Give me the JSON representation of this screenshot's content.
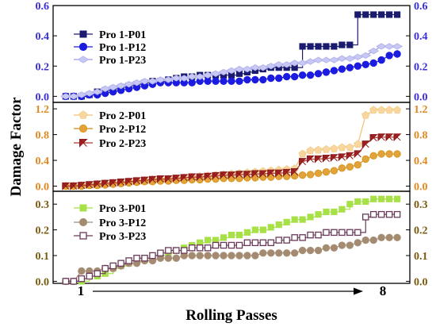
{
  "chart_data": [
    {
      "type": "line",
      "ylim": [
        -0.04,
        0.6
      ],
      "yticks": [
        "0.0",
        "0.2",
        "0.4",
        "0.6"
      ],
      "tick_color": "#3a2fd6",
      "legend_position": "top-left",
      "series": [
        {
          "name": "Pro 1-P01",
          "marker": "square",
          "color": "#1a1a6e",
          "fill": "#1a1a6e",
          "line": "#1a1a6e",
          "step": true,
          "values": [
            0.0,
            0.0,
            0.0,
            0.01,
            0.03,
            0.04,
            0.05,
            0.06,
            0.07,
            0.08,
            0.09,
            0.1,
            0.1,
            0.11,
            0.12,
            0.13,
            0.13,
            0.14,
            0.14,
            0.14,
            0.14,
            0.14,
            0.15,
            0.16,
            0.17,
            0.18,
            0.19,
            0.19,
            0.19,
            0.19,
            0.33,
            0.33,
            0.33,
            0.33,
            0.33,
            0.34,
            0.34,
            0.54,
            0.54,
            0.54,
            0.54,
            0.54,
            0.54
          ]
        },
        {
          "name": "Pro 1-P12",
          "marker": "circle",
          "color": "#1c1ce0",
          "fill": "#1c1ce0",
          "line": "#1c1ce0",
          "step": false,
          "values": [
            0.0,
            0.0,
            0.0,
            0.01,
            0.01,
            0.02,
            0.03,
            0.04,
            0.05,
            0.06,
            0.07,
            0.08,
            0.09,
            0.09,
            0.09,
            0.09,
            0.09,
            0.1,
            0.1,
            0.1,
            0.1,
            0.1,
            0.1,
            0.11,
            0.11,
            0.11,
            0.12,
            0.12,
            0.13,
            0.13,
            0.14,
            0.14,
            0.15,
            0.16,
            0.17,
            0.18,
            0.19,
            0.2,
            0.21,
            0.22,
            0.24,
            0.27,
            0.28
          ]
        },
        {
          "name": "Pro 1-P23",
          "marker": "diamond",
          "color": "#b4b4ee",
          "fill": "#c8c8f4",
          "line": "#9a9ae4",
          "step": false,
          "values": [
            0.0,
            0.0,
            0.01,
            0.02,
            0.03,
            0.05,
            0.06,
            0.07,
            0.08,
            0.09,
            0.1,
            0.1,
            0.11,
            0.11,
            0.12,
            0.12,
            0.13,
            0.13,
            0.14,
            0.15,
            0.16,
            0.17,
            0.18,
            0.18,
            0.19,
            0.19,
            0.2,
            0.21,
            0.21,
            0.22,
            0.22,
            0.23,
            0.24,
            0.24,
            0.24,
            0.25,
            0.25,
            0.26,
            0.27,
            0.3,
            0.33,
            0.33,
            0.33
          ]
        }
      ]
    },
    {
      "type": "line",
      "ylim": [
        -0.08,
        1.3
      ],
      "yticks": [
        "0.0",
        "0.4",
        "0.8",
        "1.2"
      ],
      "tick_color": "#e08820",
      "legend_position": "top-left",
      "series": [
        {
          "name": "Pro 2-P01",
          "marker": "pentagon",
          "color": "#f5cf90",
          "fill": "#f7d79d",
          "line": "#f0bf75",
          "step": false,
          "values": [
            0.0,
            0.0,
            0.01,
            0.02,
            0.03,
            0.04,
            0.05,
            0.06,
            0.07,
            0.08,
            0.09,
            0.1,
            0.1,
            0.11,
            0.12,
            0.13,
            0.14,
            0.15,
            0.16,
            0.17,
            0.18,
            0.19,
            0.2,
            0.21,
            0.22,
            0.23,
            0.24,
            0.25,
            0.26,
            0.27,
            0.5,
            0.55,
            0.56,
            0.57,
            0.58,
            0.6,
            0.6,
            0.65,
            1.1,
            1.18,
            1.18,
            1.18,
            1.18
          ]
        },
        {
          "name": "Pro 2-P12",
          "marker": "circle",
          "color": "#d9951d",
          "fill": "#e2a33a",
          "line": "#d08b18",
          "step": false,
          "values": [
            0.0,
            0.0,
            0.0,
            0.01,
            0.01,
            0.02,
            0.03,
            0.04,
            0.05,
            0.06,
            0.07,
            0.07,
            0.08,
            0.08,
            0.09,
            0.09,
            0.1,
            0.1,
            0.11,
            0.11,
            0.12,
            0.12,
            0.12,
            0.13,
            0.13,
            0.14,
            0.14,
            0.15,
            0.15,
            0.16,
            0.17,
            0.18,
            0.2,
            0.22,
            0.24,
            0.28,
            0.3,
            0.33,
            0.42,
            0.47,
            0.5,
            0.5,
            0.5
          ]
        },
        {
          "name": "Pro 2-P23",
          "marker": "bowtie",
          "color": "#8b1a1a",
          "fill": "#a52222",
          "line": "#b23434",
          "step": false,
          "values": [
            0.0,
            0.0,
            0.01,
            0.02,
            0.03,
            0.04,
            0.05,
            0.06,
            0.07,
            0.08,
            0.09,
            0.1,
            0.11,
            0.11,
            0.12,
            0.13,
            0.14,
            0.14,
            0.15,
            0.16,
            0.17,
            0.17,
            0.18,
            0.18,
            0.19,
            0.19,
            0.2,
            0.2,
            0.21,
            0.22,
            0.38,
            0.42,
            0.42,
            0.43,
            0.44,
            0.45,
            0.47,
            0.5,
            0.65,
            0.75,
            0.76,
            0.76,
            0.76
          ]
        }
      ]
    },
    {
      "type": "line",
      "ylim": [
        -0.008,
        0.35
      ],
      "yticks": [
        "0.0",
        "0.1",
        "0.2",
        "0.3"
      ],
      "tick_color": "#7a5a10",
      "legend_position": "top-left",
      "series": [
        {
          "name": "Pro 3-P01",
          "marker": "square",
          "color": "#a8e048",
          "fill": "#a8e048",
          "line": "#a8e048",
          "step": true,
          "values": [
            0.0,
            0.0,
            0.0,
            0.02,
            0.02,
            0.03,
            0.05,
            0.06,
            0.07,
            0.08,
            0.09,
            0.1,
            0.1,
            0.11,
            0.12,
            0.13,
            0.14,
            0.15,
            0.16,
            0.16,
            0.17,
            0.18,
            0.18,
            0.19,
            0.2,
            0.2,
            0.21,
            0.22,
            0.23,
            0.24,
            0.24,
            0.25,
            0.26,
            0.27,
            0.27,
            0.28,
            0.3,
            0.31,
            0.31,
            0.32,
            0.32,
            0.32,
            0.32
          ]
        },
        {
          "name": "Pro 3-P12",
          "marker": "circle",
          "color": "#a89078",
          "fill": "#a48a70",
          "line": "#a48a70",
          "step": false,
          "values": [
            0.0,
            0.0,
            0.04,
            0.04,
            0.04,
            0.05,
            0.05,
            0.06,
            0.07,
            0.07,
            0.08,
            0.08,
            0.09,
            0.09,
            0.09,
            0.1,
            0.1,
            0.1,
            0.1,
            0.1,
            0.1,
            0.1,
            0.1,
            0.1,
            0.1,
            0.11,
            0.11,
            0.11,
            0.11,
            0.11,
            0.12,
            0.12,
            0.12,
            0.13,
            0.13,
            0.14,
            0.14,
            0.15,
            0.16,
            0.16,
            0.17,
            0.17,
            0.17
          ]
        },
        {
          "name": "Pro 3-P23",
          "marker": "square-open",
          "color": "#6a3a5a",
          "fill": "#ffffff",
          "line": "#6a3a5a",
          "step": true,
          "values": [
            0.0,
            0.0,
            0.01,
            0.02,
            0.03,
            0.05,
            0.06,
            0.07,
            0.08,
            0.09,
            0.09,
            0.1,
            0.11,
            0.12,
            0.12,
            0.12,
            0.13,
            0.13,
            0.13,
            0.14,
            0.14,
            0.14,
            0.14,
            0.15,
            0.15,
            0.15,
            0.15,
            0.16,
            0.16,
            0.17,
            0.17,
            0.18,
            0.18,
            0.19,
            0.19,
            0.19,
            0.19,
            0.19,
            0.25,
            0.26,
            0.26,
            0.26,
            0.26
          ]
        }
      ]
    }
  ],
  "axes": {
    "ylabel": "Damage Factor",
    "xlabel": "Rolling Passes",
    "x_start_label": "1",
    "x_end_label": "8"
  }
}
